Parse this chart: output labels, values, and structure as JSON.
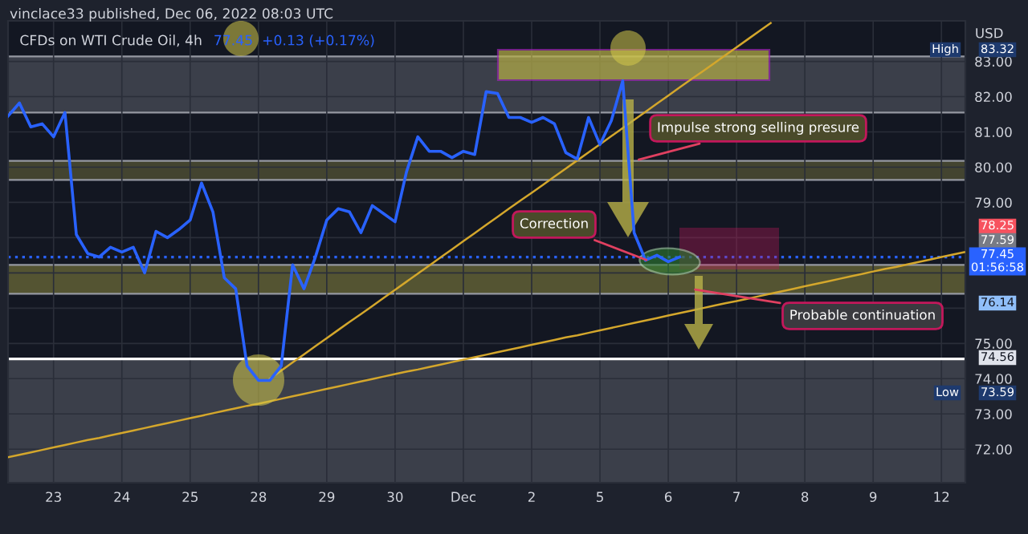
{
  "chart_data": {
    "type": "line",
    "title": "CFDs on WTI Crude Oil, 4h",
    "subtitle": "77.45  +0.13 (+0.17%)",
    "ylabel": "USD",
    "categories": [
      null,
      null,
      null,
      null,
      "23",
      null,
      null,
      null,
      null,
      null,
      "24",
      null,
      null,
      null,
      null,
      null,
      "25",
      null,
      null,
      null,
      null,
      null,
      "28",
      null,
      null,
      null,
      null,
      null,
      "29",
      null,
      null,
      null,
      null,
      null,
      "30",
      null,
      null,
      null,
      null,
      null,
      "Dec",
      null,
      null,
      null,
      null,
      null,
      "2",
      null,
      null,
      null,
      null,
      null,
      "5",
      null,
      null,
      null,
      null,
      null,
      "6",
      null,
      null,
      null,
      null,
      null,
      "7",
      null,
      null,
      null,
      null,
      null,
      "8",
      null,
      null,
      null,
      null,
      null,
      "9",
      null,
      null,
      null,
      null,
      null,
      "12",
      null,
      null
    ],
    "series": [
      {
        "color": "#2962ff",
        "values": [
          81.45,
          81.82,
          81.14,
          81.23,
          80.86,
          81.55,
          78.09,
          77.55,
          77.45,
          77.73,
          77.59,
          77.73,
          77.0,
          78.18,
          78.0,
          78.23,
          78.5,
          79.55,
          78.73,
          76.86,
          76.55,
          74.36,
          73.95,
          73.95,
          74.36,
          77.23,
          76.55,
          77.45,
          78.5,
          78.82,
          78.73,
          78.14,
          78.91,
          78.68,
          78.45,
          79.86,
          80.86,
          80.45,
          80.45,
          80.27,
          80.45,
          80.36,
          82.14,
          82.09,
          81.41,
          81.41,
          81.27,
          81.41,
          81.23,
          80.41,
          80.23,
          81.41,
          80.64,
          81.32,
          82.45,
          78.14,
          77.36,
          77.5,
          77.32,
          77.45,
          null,
          null,
          null,
          null,
          null,
          null,
          null,
          null,
          null,
          null,
          null,
          null,
          null,
          null,
          null,
          null,
          null,
          null,
          null,
          null,
          null,
          null,
          null,
          null,
          null
        ]
      },
      {
        "color": "#d4a72c",
        "values": [
          71.77,
          71.84,
          71.91,
          71.98,
          72.05,
          72.12,
          72.19,
          72.26,
          72.32,
          72.39,
          72.46,
          72.53,
          72.6,
          72.67,
          72.74,
          72.81,
          72.88,
          72.95,
          73.02,
          73.09,
          73.16,
          73.23,
          73.29,
          73.36,
          73.43,
          73.5,
          73.57,
          73.64,
          73.71,
          73.78,
          73.85,
          73.92,
          73.99,
          74.06,
          74.13,
          74.2,
          74.26,
          74.33,
          74.4,
          74.47,
          74.54,
          74.61,
          74.68,
          74.75,
          74.82,
          74.89,
          74.96,
          75.03,
          75.1,
          75.17,
          75.23,
          75.3,
          75.37,
          75.44,
          75.51,
          75.58,
          75.65,
          75.72,
          75.79,
          75.86,
          75.93,
          76.0,
          76.07,
          76.14,
          76.2,
          76.27,
          76.34,
          76.41,
          76.48,
          76.55,
          76.62,
          76.69,
          76.76,
          76.83,
          76.9,
          76.97,
          77.04,
          77.11,
          77.17,
          77.24,
          77.31,
          77.38,
          77.45,
          77.52,
          77.59
        ]
      },
      {
        "color": "#d4a72c",
        "values": [
          null,
          null,
          null,
          null,
          null,
          null,
          null,
          null,
          null,
          null,
          null,
          null,
          null,
          null,
          null,
          null,
          null,
          null,
          null,
          null,
          null,
          null,
          null,
          74.0,
          74.23,
          74.46,
          74.69,
          74.92,
          75.15,
          75.38,
          75.61,
          75.83,
          76.06,
          76.29,
          76.52,
          76.75,
          76.98,
          77.21,
          77.44,
          77.67,
          77.9,
          78.13,
          78.36,
          78.59,
          78.82,
          79.05,
          79.27,
          79.5,
          79.73,
          79.96,
          80.19,
          80.42,
          80.65,
          80.88,
          81.11,
          81.34,
          81.57,
          81.8,
          82.03,
          82.26,
          82.49,
          82.71,
          82.94,
          83.17,
          83.4,
          83.63,
          83.86,
          84.09,
          null,
          null,
          null,
          null,
          null,
          null,
          null,
          null,
          null,
          null,
          null,
          null,
          null,
          null,
          null,
          null,
          null
        ]
      }
    ],
    "ylim": [
      71.05,
      84.15
    ],
    "yticks": [
      {
        "value": 72,
        "label": "72.00"
      },
      {
        "value": 73,
        "label": "73.00"
      },
      {
        "value": 74,
        "label": "74.00"
      },
      {
        "value": 75,
        "label": "75.00"
      },
      {
        "value": 76,
        "label": null
      },
      {
        "value": 77,
        "label": null
      },
      {
        "value": 78,
        "label": null
      },
      {
        "value": 79,
        "label": "79.00"
      },
      {
        "value": 80,
        "label": "80.00"
      },
      {
        "value": 81,
        "label": "81.00"
      },
      {
        "value": 82,
        "label": "82.00"
      },
      {
        "value": 83,
        "label": "83.00"
      }
    ],
    "grid": true,
    "bands": [
      {
        "axis": "y",
        "from": 81.55,
        "to": 83.14,
        "color": "#5d606b"
      },
      {
        "axis": "y",
        "from": 79.64,
        "to": 80.18,
        "color": "#6b6a3c"
      },
      {
        "axis": "y",
        "from": 76.41,
        "to": 77.23,
        "color": "#8a8740"
      },
      {
        "axis": "y",
        "from": 71.05,
        "to": 74.56,
        "color": "#5d606b"
      }
    ],
    "ref_lines": [
      {
        "axis": "y",
        "value": 74.56,
        "color": "#ffffff",
        "line_style": "solid"
      },
      {
        "axis": "y",
        "value": 77.45,
        "color": "#2962ff",
        "line_style": "dotted"
      }
    ],
    "annotations": [
      {
        "text": "Impulse strong selling presure",
        "y": 80.18
      },
      {
        "text": "Correction",
        "y": 77.32
      },
      {
        "text": "Probable continuation",
        "y": 76.55
      },
      "83.32",
      "78.25",
      "77.59",
      "77.45\n01:56:58",
      "76.14",
      "74.56",
      "73.59",
      "High",
      "Low",
      "vinclace33 published, Dec 06, 2022 08:03 UTC"
    ],
    "legend": false
  }
}
